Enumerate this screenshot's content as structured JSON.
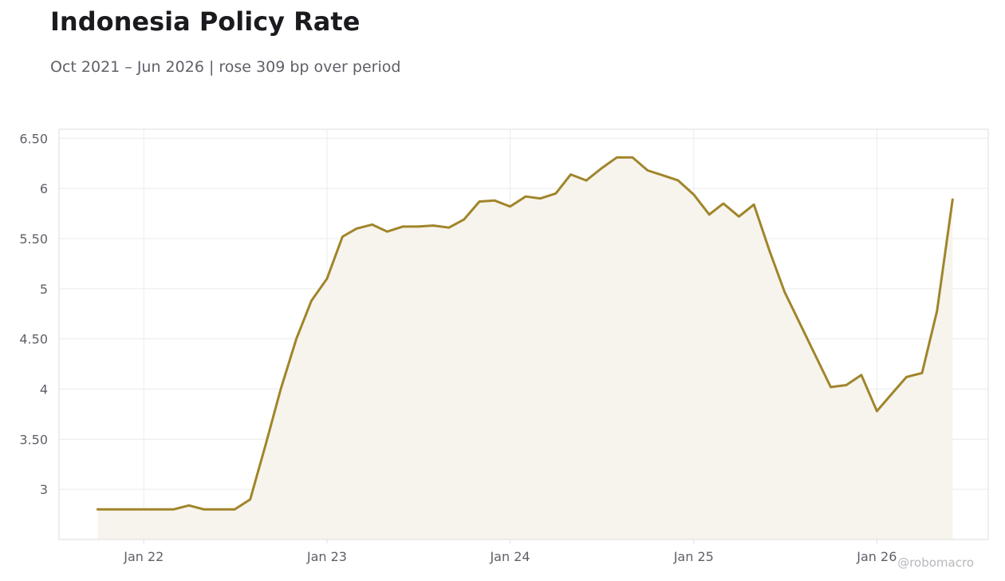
{
  "header": {
    "title": "Indonesia Policy Rate",
    "subtitle": "Oct 2021 – Jun 2026 | rose 309 bp over period"
  },
  "credit": "@robomacro",
  "colors": {
    "line": "#a0852a",
    "fill": "#f7f4ed",
    "grid": "#ebebeb",
    "frame": "#dddddd",
    "text": "#5f6068"
  },
  "chart_data": {
    "type": "area",
    "title": "Indonesia Policy Rate",
    "subtitle": "Oct 2021 – Jun 2026 | rose 309 bp over period",
    "xlabel": "",
    "ylabel": "",
    "grid": true,
    "legend": "none",
    "xlim": [
      "2021-07-16",
      "2026-08-11"
    ],
    "ylim": [
      2.5,
      6.59
    ],
    "x_ticks": [
      {
        "date": "2022-01-01",
        "label": "Jan 22"
      },
      {
        "date": "2023-01-01",
        "label": "Jan 23"
      },
      {
        "date": "2024-01-01",
        "label": "Jan 24"
      },
      {
        "date": "2025-01-01",
        "label": "Jan 25"
      },
      {
        "date": "2026-01-01",
        "label": "Jan 26"
      }
    ],
    "y_ticks": [
      {
        "value": 3,
        "label": "3"
      },
      {
        "value": 3.5,
        "label": "3.50"
      },
      {
        "value": 4,
        "label": "4"
      },
      {
        "value": 4.5,
        "label": "4.50"
      },
      {
        "value": 5,
        "label": "5"
      },
      {
        "value": 5.5,
        "label": "5.50"
      },
      {
        "value": 6,
        "label": "6"
      },
      {
        "value": 6.5,
        "label": "6.50"
      }
    ],
    "series": [
      {
        "x": [
          "2021-10-01",
          "2021-11-01",
          "2021-12-01",
          "2022-01-01",
          "2022-02-01",
          "2022-03-01",
          "2022-04-01",
          "2022-05-01",
          "2022-06-01",
          "2022-07-01",
          "2022-08-01",
          "2022-09-01",
          "2022-10-01",
          "2022-11-01",
          "2022-12-01",
          "2023-01-01",
          "2023-02-01",
          "2023-03-01",
          "2023-04-01",
          "2023-05-01",
          "2023-06-01",
          "2023-07-01",
          "2023-08-01",
          "2023-09-01",
          "2023-10-01",
          "2023-11-01",
          "2023-12-01",
          "2024-01-01",
          "2024-02-01",
          "2024-03-01",
          "2024-04-01",
          "2024-05-01",
          "2024-06-01",
          "2024-07-01",
          "2024-08-01",
          "2024-09-01",
          "2024-10-01",
          "2024-11-01",
          "2024-12-01",
          "2025-01-01",
          "2025-02-01",
          "2025-03-01",
          "2025-04-01",
          "2025-05-01",
          "2025-06-01",
          "2025-07-01",
          "2025-08-01",
          "2025-09-01",
          "2025-10-01",
          "2025-11-01",
          "2025-12-01",
          "2026-01-01",
          "2026-02-01",
          "2026-03-01",
          "2026-04-01",
          "2026-05-01",
          "2026-06-01"
        ],
        "values": [
          2.8,
          2.8,
          2.8,
          2.8,
          2.8,
          2.8,
          2.84,
          2.8,
          2.8,
          2.8,
          2.9,
          3.45,
          4.0,
          4.5,
          4.88,
          5.1,
          5.52,
          5.6,
          5.64,
          5.57,
          5.62,
          5.62,
          5.63,
          5.61,
          5.69,
          5.87,
          5.88,
          5.82,
          5.92,
          5.9,
          5.95,
          6.14,
          6.08,
          6.2,
          6.31,
          6.31,
          6.18,
          6.13,
          6.08,
          5.94,
          5.74,
          5.85,
          5.72,
          5.84,
          5.38,
          4.97,
          4.65,
          4.33,
          4.02,
          4.04,
          4.14,
          3.78,
          3.96,
          4.12,
          4.16,
          4.78,
          5.89
        ]
      }
    ]
  }
}
